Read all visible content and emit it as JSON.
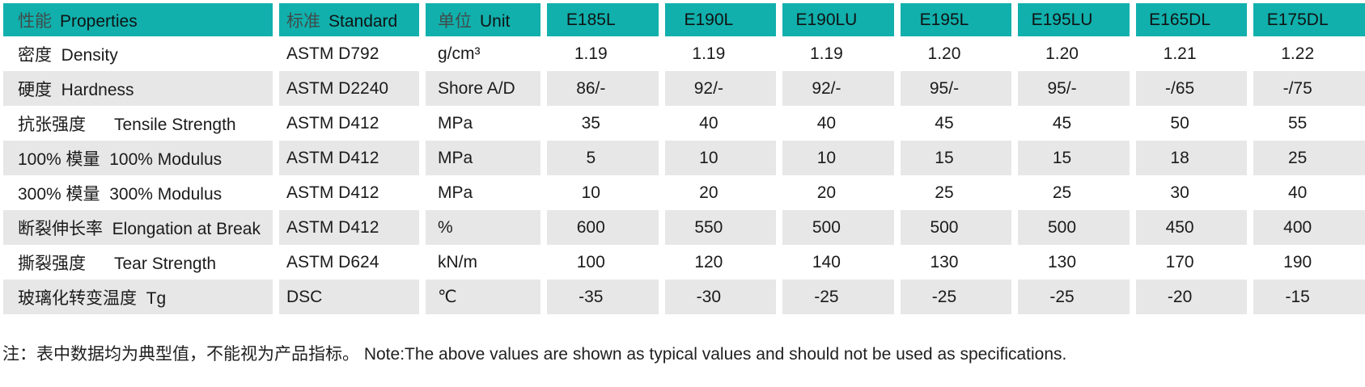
{
  "header": {
    "property": {
      "zh": "性能",
      "en": "Properties"
    },
    "standard": {
      "zh": "标准",
      "en": "Standard"
    },
    "unit": {
      "zh": "单位",
      "en": "Unit"
    },
    "products": [
      "E185L",
      "E190L",
      "E190LU",
      "E195L",
      "E195LU",
      "E165DL",
      "E175DL"
    ]
  },
  "rows": [
    {
      "property": "密度  Density",
      "standard": "ASTM D792",
      "unit": "g/cm³",
      "values": [
        "1.19",
        "1.19",
        "1.19",
        "1.20",
        "1.20",
        "1.21",
        "1.22"
      ]
    },
    {
      "property": "硬度  Hardness",
      "standard": "ASTM D2240",
      "unit": "Shore A/D",
      "values": [
        "86/-",
        "92/-",
        "92/-",
        "95/-",
        "95/-",
        "-/65",
        "-/75"
      ]
    },
    {
      "property": "抗张强度      Tensile Strength",
      "standard": "ASTM D412",
      "unit": "MPa",
      "values": [
        "35",
        "40",
        "40",
        "45",
        "45",
        "50",
        "55"
      ]
    },
    {
      "property": "100% 模量  100% Modulus",
      "standard": "ASTM D412",
      "unit": "MPa",
      "values": [
        "5",
        "10",
        "10",
        "15",
        "15",
        "18",
        "25"
      ]
    },
    {
      "property": "300% 模量  300% Modulus",
      "standard": "ASTM D412",
      "unit": "MPa",
      "values": [
        "10",
        "20",
        "20",
        "25",
        "25",
        "30",
        "40"
      ]
    },
    {
      "property": "断裂伸长率  Elongation at Break",
      "standard": "ASTM D412",
      "unit": "%",
      "values": [
        "600",
        "550",
        "500",
        "500",
        "500",
        "450",
        "400"
      ]
    },
    {
      "property": "撕裂强度      Tear Strength",
      "standard": "ASTM D624",
      "unit": "kN/m",
      "values": [
        "100",
        "120",
        "140",
        "130",
        "130",
        "170",
        "190"
      ]
    },
    {
      "property": "玻璃化转变温度  Tg",
      "standard": "DSC",
      "unit": "℃",
      "values": [
        "-35",
        "-30",
        "-25",
        "-25",
        "-25",
        "-20",
        "-15"
      ]
    }
  ],
  "note": "注：表中数据均为典型值，不能视为产品指标。 Note:The above values are shown as typical values and should not be used as specifications.",
  "colors": {
    "header_bg": "#11b0ac",
    "stripe_bg": "#e7e7e7",
    "header_zh_text": "#3f4c4b",
    "body_text": "#1b1b1b"
  }
}
